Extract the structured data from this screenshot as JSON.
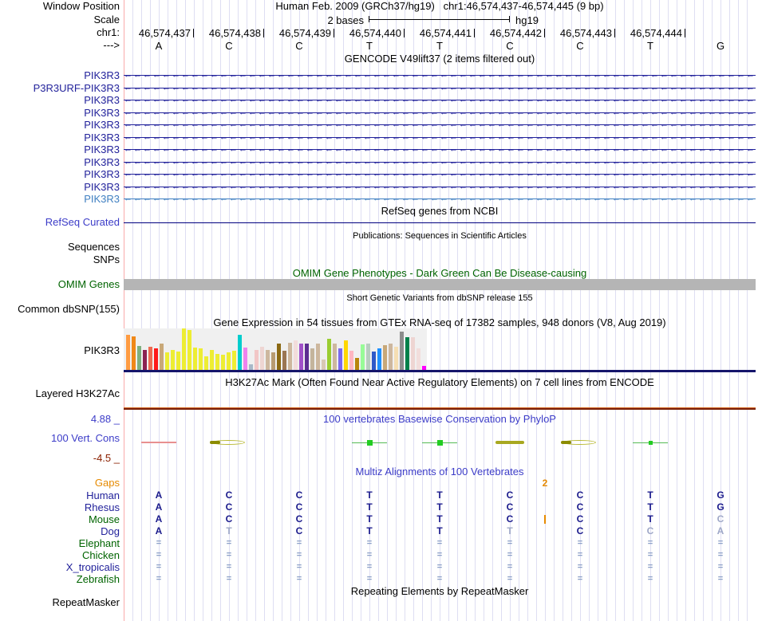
{
  "header": {
    "window_position_label": "Window Position",
    "assembly_text": "Human Feb. 2009 (GRCh37/hg19)",
    "position_text": "chr1:46,574,437-46,574,445 (9 bp)",
    "scale_label": "Scale",
    "scale_bases": "2 bases",
    "scale_assembly": "hg19",
    "chrom_label": "chr1:",
    "strand_label": "--->",
    "coordinates": [
      "46,574,437",
      "46,574,438",
      "46,574,439",
      "46,574,440",
      "46,574,441",
      "46,574,442",
      "46,574,443",
      "46,574,444"
    ],
    "bases": [
      "A",
      "C",
      "C",
      "T",
      "T",
      "C",
      "C",
      "T",
      "G"
    ]
  },
  "gencode": {
    "title": "GENCODE V49lift37 (2 items filtered out)",
    "genes": [
      {
        "label": "PIK3R3",
        "color": "#22229B"
      },
      {
        "label": "P3R3URF-PIK3R3",
        "color": "#22229B"
      },
      {
        "label": "PIK3R3",
        "color": "#22229B"
      },
      {
        "label": "PIK3R3",
        "color": "#22229B"
      },
      {
        "label": "PIK3R3",
        "color": "#22229B"
      },
      {
        "label": "PIK3R3",
        "color": "#22229B"
      },
      {
        "label": "PIK3R3",
        "color": "#22229B"
      },
      {
        "label": "PIK3R3",
        "color": "#22229B"
      },
      {
        "label": "PIK3R3",
        "color": "#22229B"
      },
      {
        "label": "PIK3R3",
        "color": "#22229B"
      },
      {
        "label": "PIK3R3",
        "color": "#3F7FC1"
      }
    ]
  },
  "refseq": {
    "title": "RefSeq genes from NCBI",
    "label": "RefSeq Curated"
  },
  "publications": {
    "title": "Publications: Sequences in Scientific Articles",
    "label": "Sequences"
  },
  "snps": {
    "label": "SNPs"
  },
  "omim": {
    "title": "OMIM Gene Phenotypes - Dark Green Can Be Disease-causing",
    "label": "OMIM Genes"
  },
  "dbsnp": {
    "title": "Short Genetic Variants from dbSNP release 155",
    "label": "Common dbSNP(155)"
  },
  "gtex": {
    "title": "Gene Expression in 54 tissues from GTEx RNA-seq of 17382 samples, 948 donors (V8, Aug 2019)",
    "label": "PIK3R3",
    "bars": {
      "colors": [
        "#FF9C42",
        "#F08818",
        "#7FB07F",
        "#8B2252",
        "#EE6A50",
        "#FF1A1A",
        "#C8A878",
        "#EDED33",
        "#EDED33",
        "#EDED33",
        "#EDED33",
        "#EDED33",
        "#EDED33",
        "#EDED33",
        "#EDED33",
        "#EDED33",
        "#EDED33",
        "#EDED33",
        "#EDED33",
        "#EDED33",
        "#00CDCD",
        "#EE82EE",
        "#A8B8C8",
        "#F2C6C6",
        "#EED5D2",
        "#CDB79E",
        "#B89B72",
        "#8B6914",
        "#9B7653",
        "#CDB79E",
        "#F2DCDB",
        "#A050C8",
        "#5C2D91",
        "#C4B49C",
        "#CDB79E",
        "#D8C8B4",
        "#9ACD32",
        "#CDB79E",
        "#7B68EE",
        "#FFD700",
        "#FFB6C1",
        "#B8860B",
        "#98FB98",
        "#B8CDC0",
        "#2E59C8",
        "#1E90FF",
        "#C8A878",
        "#CDB79E",
        "#F5DEB3",
        "#8C8C8C",
        "#00804A",
        "#EED5D2",
        "#F2DEDC",
        "#FF00FF"
      ],
      "heights": [
        44,
        42,
        30,
        25,
        29,
        27,
        33,
        22,
        25,
        23,
        52,
        50,
        28,
        27,
        17,
        25,
        20,
        19,
        22,
        24,
        44,
        28,
        7,
        25,
        29,
        25,
        22,
        33,
        24,
        34,
        37,
        33,
        33,
        27,
        33,
        13,
        39,
        33,
        27,
        37,
        24,
        15,
        32,
        33,
        23,
        27,
        31,
        33,
        29,
        48,
        41,
        41,
        27,
        5
      ]
    }
  },
  "h3k27ac": {
    "title": "H3K27Ac Mark (Often Found Near Active Regulatory Elements) on 7 cell lines from ENCODE",
    "label": "Layered H3K27Ac"
  },
  "conservation": {
    "title": "100 vertebrates Basewise Conservation by PhyloP",
    "label": "100 Vert. Cons",
    "max_text": "4.88 _",
    "min_text": "-4.5 _",
    "marks": [
      {
        "base": 1,
        "kind": "neg"
      },
      {
        "base": 2,
        "kind": "lens"
      },
      {
        "base": 4,
        "kind": "pos",
        "sq": 7
      },
      {
        "base": 5,
        "kind": "pos",
        "sq": 7
      },
      {
        "base": 6,
        "kind": "blob"
      },
      {
        "base": 7,
        "kind": "lens"
      },
      {
        "base": 8,
        "kind": "pos",
        "sq": 5
      }
    ]
  },
  "multiz": {
    "title": "Multiz Alignments of 100 Vertebrates",
    "gaps_label": "Gaps",
    "gap_count": "2",
    "gap_boundary_after_base": 6,
    "species": [
      {
        "name": "Human",
        "color": "#22229B",
        "bases": [
          "A",
          "C",
          "C",
          "T",
          "T",
          "C",
          "C",
          "T",
          "G"
        ],
        "faded": [
          0,
          0,
          0,
          0,
          0,
          0,
          0,
          0,
          0
        ]
      },
      {
        "name": "Rhesus",
        "color": "#22229B",
        "bases": [
          "A",
          "C",
          "C",
          "T",
          "T",
          "C",
          "C",
          "T",
          "G"
        ],
        "faded": [
          0,
          0,
          0,
          0,
          0,
          0,
          0,
          0,
          0
        ]
      },
      {
        "name": "Mouse",
        "color": "#006400",
        "bases": [
          "A",
          "C",
          "C",
          "T",
          "T",
          "C",
          "C",
          "T",
          "C"
        ],
        "faded": [
          0,
          0,
          0,
          0,
          0,
          0,
          0,
          0,
          1
        ],
        "gap_bar": true
      },
      {
        "name": "Dog",
        "color": "#22229B",
        "bases": [
          "A",
          "T",
          "C",
          "T",
          "T",
          "T",
          "C",
          "C",
          "A"
        ],
        "faded": [
          0,
          1,
          0,
          0,
          0,
          1,
          0,
          1,
          1
        ]
      },
      {
        "name": "Elephant",
        "color": "#006400",
        "bases": [
          "=",
          "=",
          "=",
          "=",
          "=",
          "=",
          "=",
          "=",
          "="
        ],
        "faded": [
          1,
          1,
          1,
          1,
          1,
          1,
          1,
          1,
          1
        ]
      },
      {
        "name": "Chicken",
        "color": "#006400",
        "bases": [
          "=",
          "=",
          "=",
          "=",
          "=",
          "=",
          "=",
          "=",
          "="
        ],
        "faded": [
          1,
          1,
          1,
          1,
          1,
          1,
          1,
          1,
          1
        ]
      },
      {
        "name": "X_tropicalis",
        "color": "#22229B",
        "bases": [
          "=",
          "=",
          "=",
          "=",
          "=",
          "=",
          "=",
          "=",
          "="
        ],
        "faded": [
          1,
          1,
          1,
          1,
          1,
          1,
          1,
          1,
          1
        ]
      },
      {
        "name": "Zebrafish",
        "color": "#006400",
        "bases": [
          "=",
          "=",
          "=",
          "=",
          "=",
          "=",
          "=",
          "=",
          "="
        ],
        "faded": [
          1,
          1,
          1,
          1,
          1,
          1,
          1,
          1,
          1
        ]
      }
    ]
  },
  "repeatmasker": {
    "title": "Repeating Elements by RepeatMasker",
    "label": "RepeatMasker"
  }
}
